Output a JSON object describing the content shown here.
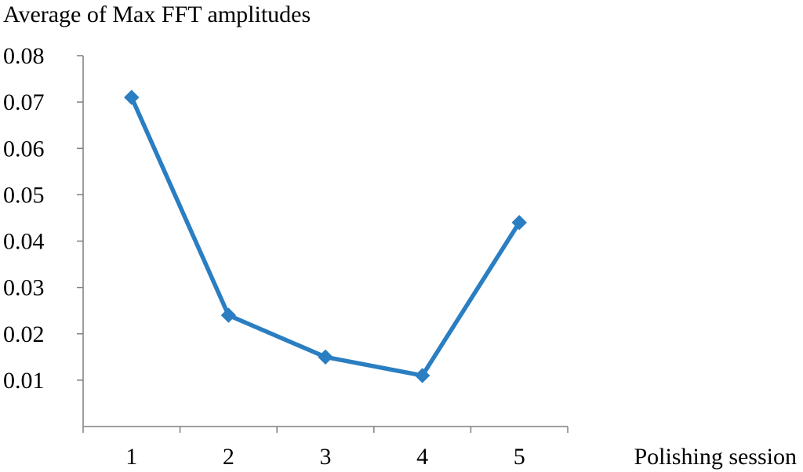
{
  "colors": {
    "series": "#2a7ec1",
    "axis": "#7f7f7f",
    "text": "#000000",
    "background": "#ffffff"
  },
  "chart_data": {
    "type": "line",
    "ylabel": "Average of Max FFT amplitudes",
    "xlabel": "Polishing session",
    "categories": [
      "1",
      "2",
      "3",
      "4",
      "5"
    ],
    "series": [
      {
        "values": [
          0.071,
          0.024,
          0.015,
          0.011,
          0.044
        ],
        "marker": "diamond"
      }
    ],
    "ylim": [
      0,
      0.08
    ],
    "ytick_labels": [
      "0.08",
      "0.07",
      "0.06",
      "0.05",
      "0.04",
      "0.03",
      "0.02",
      "0.01"
    ],
    "ytick_values": [
      0.08,
      0.07,
      0.06,
      0.05,
      0.04,
      0.03,
      0.02,
      0.01
    ],
    "grid": false,
    "legend": "none"
  }
}
